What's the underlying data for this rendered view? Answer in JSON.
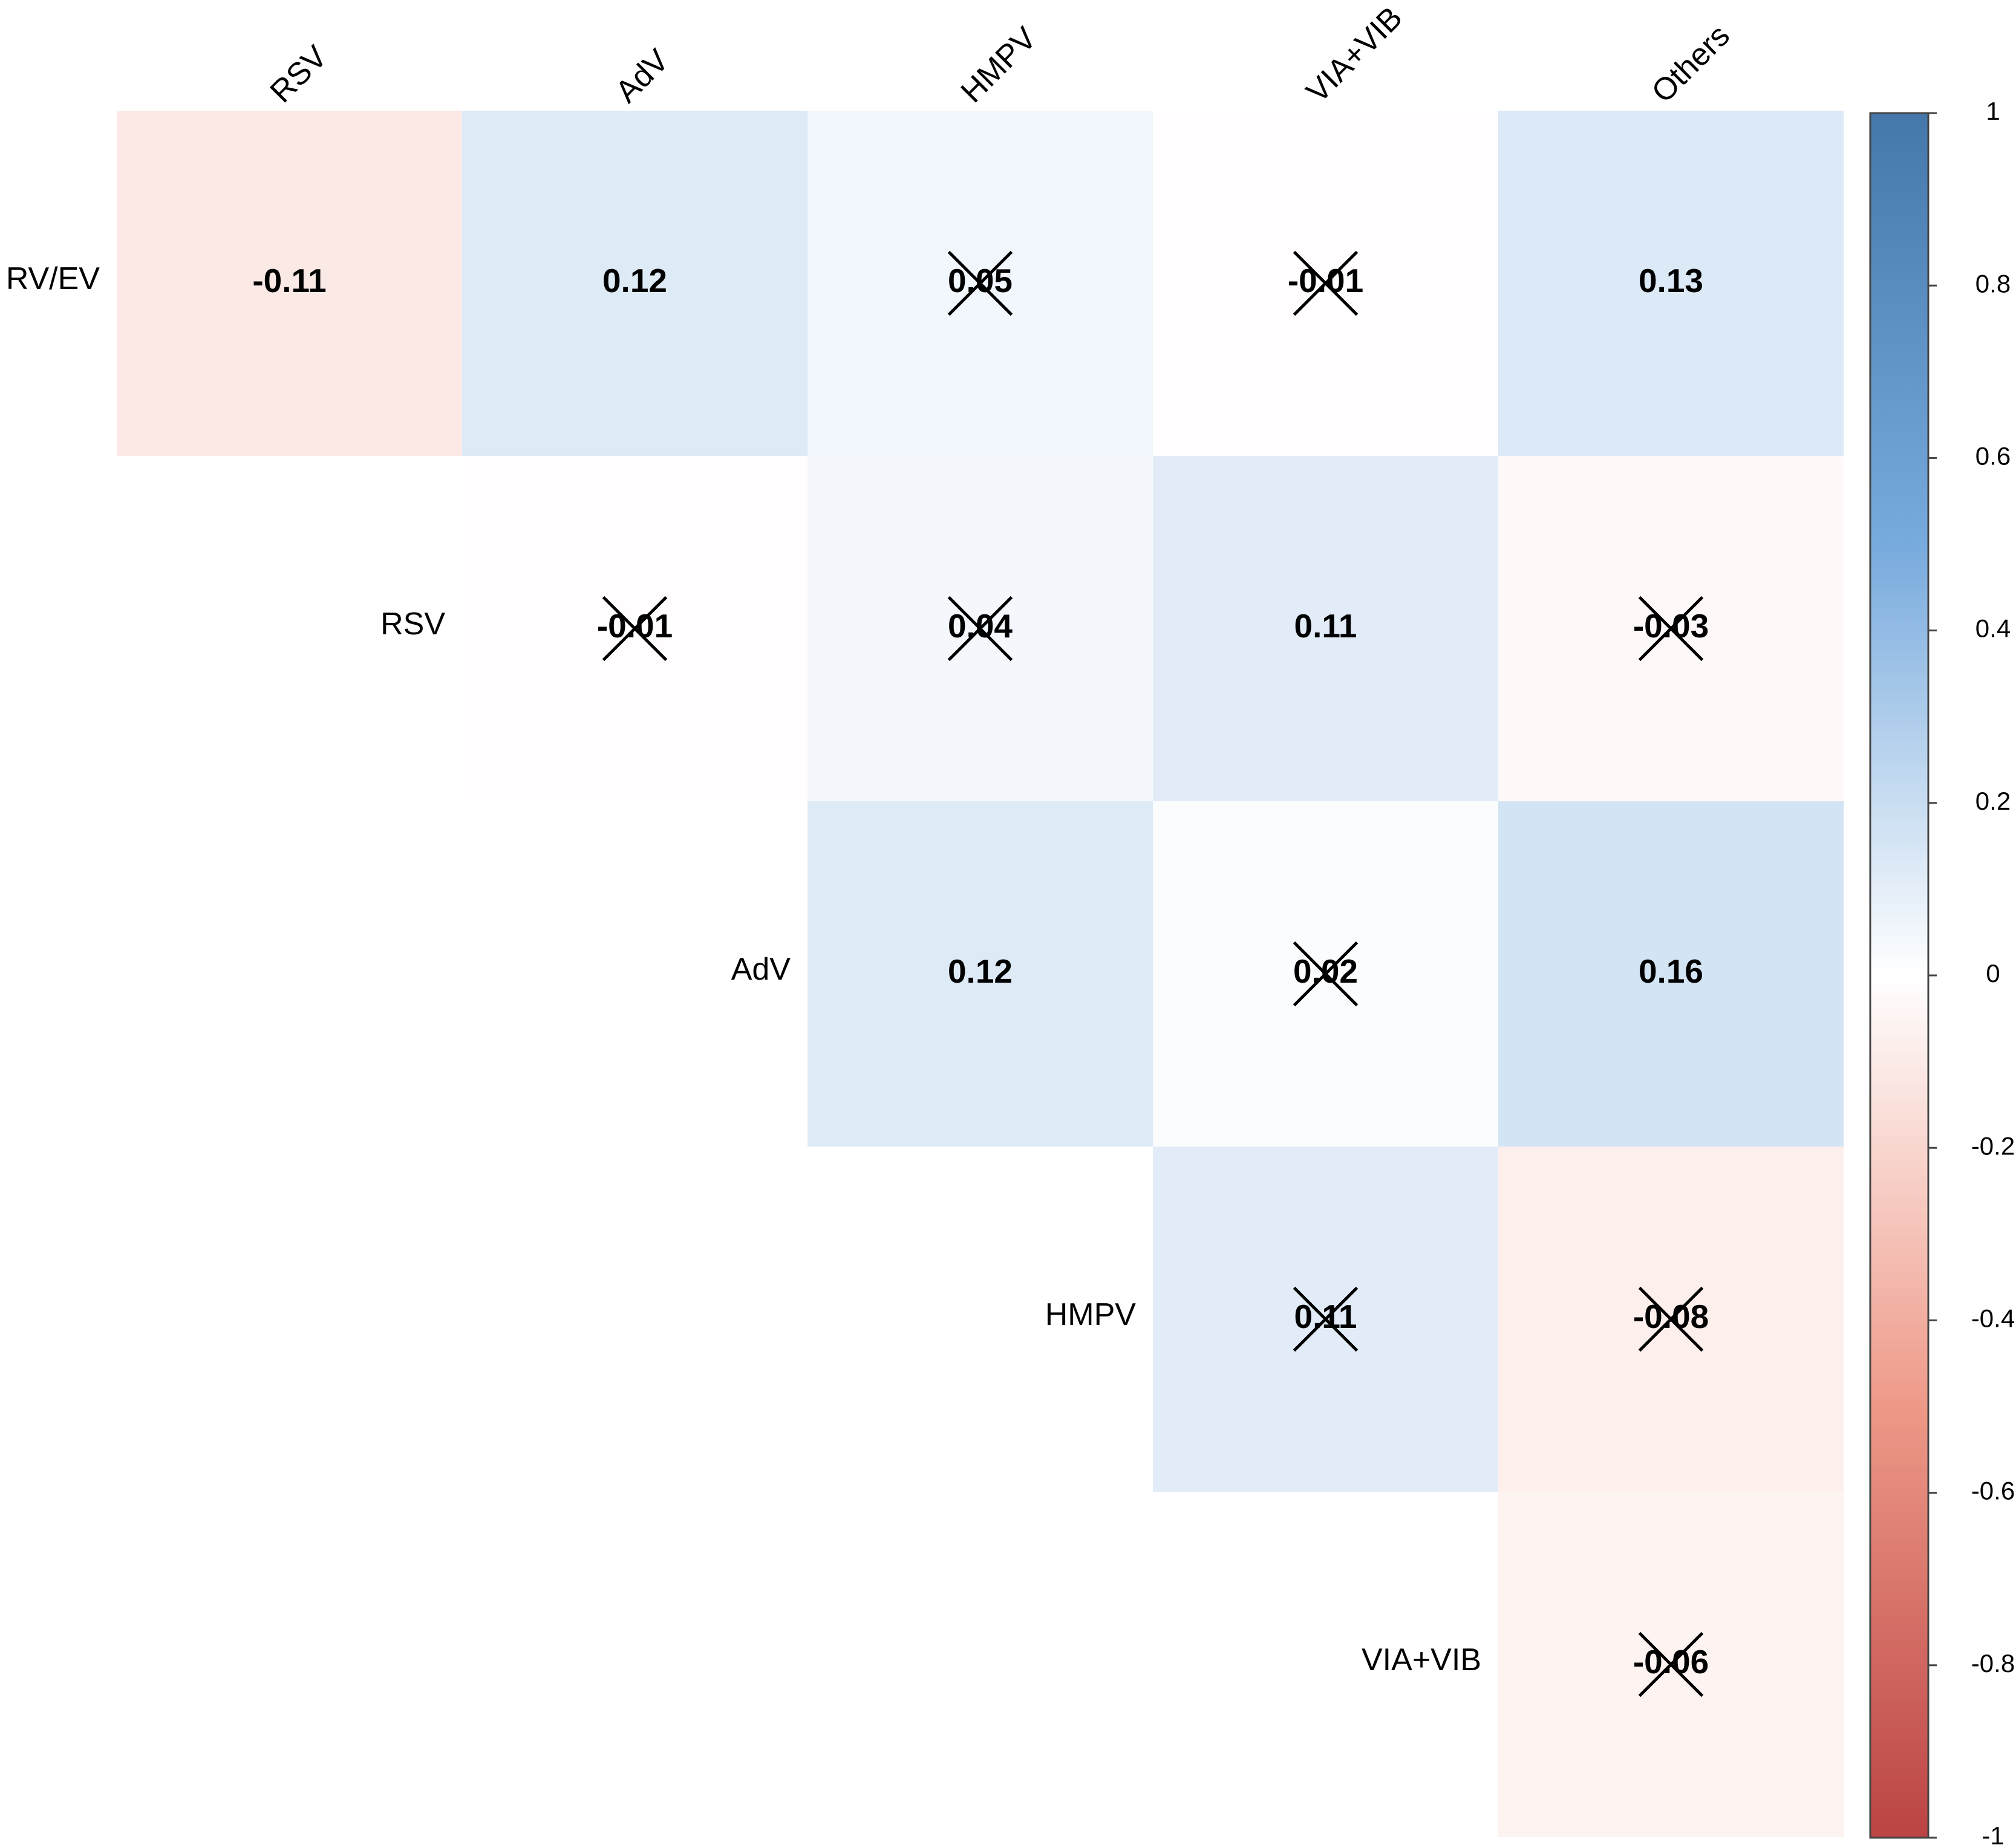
{
  "chart_data": {
    "type": "heatmap",
    "rows": [
      "RV/EV",
      "RSV",
      "AdV",
      "HMPV",
      "VIA+VIB"
    ],
    "columns": [
      "RSV",
      "AdV",
      "HMPV",
      "VIA+VIB",
      "Others"
    ],
    "values": [
      [
        -0.11,
        0.12,
        0.05,
        -0.01,
        0.13
      ],
      [
        null,
        -0.01,
        0.04,
        0.11,
        -0.03
      ],
      [
        null,
        null,
        0.12,
        0.02,
        0.16
      ],
      [
        null,
        null,
        null,
        0.11,
        -0.08
      ],
      [
        null,
        null,
        null,
        null,
        -0.06
      ]
    ],
    "crossed": [
      [
        false,
        false,
        true,
        true,
        false
      ],
      [
        null,
        true,
        true,
        false,
        true
      ],
      [
        null,
        null,
        false,
        true,
        false
      ],
      [
        null,
        null,
        null,
        true,
        true
      ],
      [
        null,
        null,
        null,
        null,
        true
      ]
    ],
    "colorscale": [
      "#BB4444",
      "#EE9988",
      "#FFFFFF",
      "#77AADD",
      "#4477AA"
    ],
    "zlim": [
      -1,
      1
    ],
    "zticks": [
      -1,
      -0.8,
      -0.6,
      -0.4,
      -0.2,
      0,
      0.2,
      0.4,
      0.6,
      0.8,
      1
    ]
  }
}
